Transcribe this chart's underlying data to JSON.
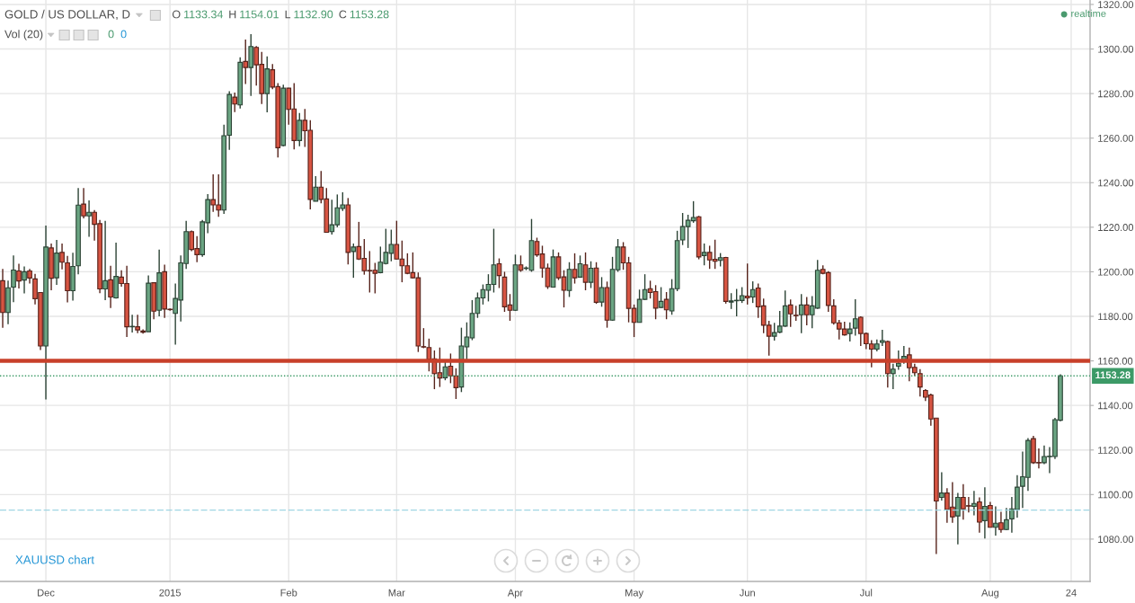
{
  "chart_data": {
    "type": "candlestick",
    "title": "GOLD / US DOLLAR, D",
    "annotations": [
      "O",
      "1133.34",
      "H",
      "1154.01",
      "L",
      "1132.90",
      "C",
      "1153.28",
      "Vol (20)",
      "0",
      "0",
      "realtime",
      "XAUUSD chart"
    ],
    "categories": [
      null,
      null,
      null,
      null,
      null,
      null,
      null,
      null,
      "Dec",
      null,
      null,
      null,
      null,
      null,
      null,
      null,
      null,
      null,
      null,
      null,
      null,
      null,
      null,
      null,
      null,
      null,
      null,
      null,
      null,
      null,
      null,
      "2015",
      null,
      null,
      null,
      null,
      null,
      null,
      null,
      null,
      null,
      null,
      null,
      null,
      null,
      null,
      null,
      null,
      null,
      null,
      null,
      null,
      null,
      "Feb",
      null,
      null,
      null,
      null,
      null,
      null,
      null,
      null,
      null,
      null,
      null,
      null,
      null,
      null,
      null,
      null,
      null,
      null,
      null,
      "Mar",
      null,
      null,
      null,
      null,
      null,
      null,
      null,
      null,
      null,
      null,
      null,
      null,
      null,
      null,
      null,
      null,
      null,
      null,
      null,
      null,
      null,
      "Apr",
      null,
      null,
      null,
      null,
      null,
      null,
      null,
      null,
      null,
      null,
      null,
      null,
      null,
      null,
      null,
      null,
      null,
      null,
      null,
      null,
      null,
      "May",
      null,
      null,
      null,
      null,
      null,
      null,
      null,
      null,
      null,
      null,
      null,
      null,
      null,
      null,
      null,
      null,
      null,
      null,
      null,
      null,
      "Jun",
      null,
      null,
      null,
      null,
      null,
      null,
      null,
      null,
      null,
      null,
      null,
      null,
      null,
      null,
      null,
      null,
      null,
      null,
      null,
      null,
      null,
      "Jul",
      null,
      null,
      null,
      null,
      null,
      null,
      null,
      null,
      null,
      null,
      null,
      null,
      null,
      null,
      null,
      null,
      null,
      null,
      null,
      null,
      null,
      null,
      "Aug",
      null,
      null,
      null,
      null,
      null,
      null,
      null,
      null,
      null,
      null,
      null,
      null,
      null,
      null,
      "24",
      null,
      null,
      null
    ],
    "ohlc": [
      [
        1196,
        1201.3,
        1174.9,
        1181.7
      ],
      [
        1181.7,
        1196,
        1176.5,
        1192.8
      ],
      [
        1193.1,
        1207.3,
        1186.4,
        1200.8
      ],
      [
        1200.4,
        1203.6,
        1192.5,
        1195.9
      ],
      [
        1196.3,
        1202.4,
        1190.3,
        1200
      ],
      [
        1200.4,
        1201.3,
        1194.7,
        1197.2
      ],
      [
        1196.8,
        1199.1,
        1185.3,
        1187.9
      ],
      [
        1190.7,
        1190.7,
        1164.9,
        1166.7
      ],
      [
        1166.7,
        1220.7,
        1142.7,
        1211.1
      ],
      [
        1210.7,
        1212.7,
        1191.7,
        1197.1
      ],
      [
        1197.3,
        1214.3,
        1194.1,
        1208.4
      ],
      [
        1208.7,
        1212.7,
        1201.1,
        1204.3
      ],
      [
        1204,
        1207.1,
        1186.3,
        1191.5
      ],
      [
        1191.5,
        1208.5,
        1187.1,
        1202.4
      ],
      [
        1202.7,
        1237.6,
        1198.9,
        1229.9
      ],
      [
        1230.4,
        1237.6,
        1224,
        1225.1
      ],
      [
        1225.1,
        1232,
        1215.7,
        1226.7
      ],
      [
        1226.7,
        1227.7,
        1214,
        1221.3
      ],
      [
        1221.6,
        1223.3,
        1190.4,
        1192.3
      ],
      [
        1192.3,
        1222.9,
        1187.3,
        1196
      ],
      [
        1196.4,
        1202.7,
        1183.7,
        1188.7
      ],
      [
        1188.3,
        1213.1,
        1188,
        1197.9
      ],
      [
        1197.6,
        1200.7,
        1193.3,
        1194.7
      ],
      [
        1194.7,
        1202.7,
        1170.7,
        1175.3
      ],
      [
        1175.3,
        1180.7,
        1172.7,
        1175.5
      ],
      [
        1175.3,
        1180.7,
        1172.4,
        1173.9
      ],
      [
        1173.4,
        1174.2,
        1172.2,
        1172.9
      ],
      [
        1173.1,
        1198.4,
        1173.1,
        1194.9
      ],
      [
        1195.1,
        1195.1,
        1178.7,
        1182.3
      ],
      [
        1182.7,
        1210,
        1180,
        1199.5
      ],
      [
        1200,
        1203.2,
        1179.3,
        1183.3
      ],
      [
        1183.2,
        1183.5,
        1182.5,
        1183
      ],
      [
        1181.3,
        1194.7,
        1167.3,
        1188
      ],
      [
        1187.3,
        1207.3,
        1177.7,
        1204
      ],
      [
        1203.7,
        1222.9,
        1201.3,
        1218
      ],
      [
        1218,
        1218.5,
        1209.3,
        1210
      ],
      [
        1210.4,
        1216,
        1204.3,
        1207.7
      ],
      [
        1207.7,
        1223.3,
        1206.7,
        1222.4
      ],
      [
        1222,
        1234.9,
        1217.3,
        1232.4
      ],
      [
        1232.4,
        1243.7,
        1226.9,
        1230
      ],
      [
        1230,
        1243.7,
        1224.7,
        1227.7
      ],
      [
        1227.7,
        1266,
        1226,
        1261.1
      ],
      [
        1261.3,
        1281.1,
        1254.7,
        1279.6
      ],
      [
        1278.4,
        1280.4,
        1271.7,
        1275.3
      ],
      [
        1274.9,
        1296.3,
        1273.3,
        1294
      ],
      [
        1294.4,
        1304.3,
        1284.3,
        1291.7
      ],
      [
        1291.7,
        1306.7,
        1278.9,
        1301.1
      ],
      [
        1300.7,
        1301.3,
        1283.6,
        1292.9
      ],
      [
        1293.1,
        1298.7,
        1275.3,
        1280
      ],
      [
        1280,
        1296.7,
        1271.6,
        1291.1
      ],
      [
        1290.7,
        1293.3,
        1282,
        1282.9
      ],
      [
        1283.1,
        1284.7,
        1251.3,
        1255.7
      ],
      [
        1256.7,
        1284,
        1256.3,
        1282.4
      ],
      [
        1282.4,
        1282.6,
        1266,
        1272.9
      ],
      [
        1273.1,
        1284.7,
        1254.9,
        1258.9
      ],
      [
        1258.9,
        1271.3,
        1256.3,
        1268
      ],
      [
        1268,
        1273.1,
        1256,
        1263.3
      ],
      [
        1263.5,
        1268,
        1228,
        1232.5
      ],
      [
        1231.7,
        1242.9,
        1231.7,
        1238
      ],
      [
        1238,
        1245.3,
        1230.7,
        1232.5
      ],
      [
        1232.7,
        1237.6,
        1217.6,
        1217.7
      ],
      [
        1218,
        1232.3,
        1216.7,
        1221.1
      ],
      [
        1221.1,
        1234.7,
        1220,
        1228.7
      ],
      [
        1228.4,
        1235.7,
        1227.3,
        1230
      ],
      [
        1230,
        1233.1,
        1203.3,
        1208.7
      ],
      [
        1209.1,
        1212.7,
        1197.3,
        1211.1
      ],
      [
        1211.3,
        1222.4,
        1205.3,
        1205.7
      ],
      [
        1206,
        1214.7,
        1198.7,
        1200.5
      ],
      [
        1200.6,
        1209.3,
        1190.7,
        1200.4
      ],
      [
        1200.7,
        1204,
        1190.3,
        1199.3
      ],
      [
        1199.6,
        1211.3,
        1199.3,
        1204.3
      ],
      [
        1203.7,
        1219.3,
        1203.3,
        1208.7
      ],
      [
        1208.3,
        1218.9,
        1204.7,
        1212.3
      ],
      [
        1212.3,
        1222.9,
        1205.6,
        1205.7
      ],
      [
        1205.7,
        1214,
        1195.3,
        1202.7
      ],
      [
        1202.7,
        1208.3,
        1198.9,
        1199.3
      ],
      [
        1199.6,
        1208.7,
        1197,
        1197.3
      ],
      [
        1197.3,
        1199.7,
        1164,
        1166.7
      ],
      [
        1166.4,
        1174.7,
        1165.7,
        1166.2
      ],
      [
        1166,
        1170,
        1155.3,
        1160.7
      ],
      [
        1160.9,
        1164.7,
        1147.3,
        1154.3
      ],
      [
        1154.7,
        1166,
        1148.3,
        1152.3
      ],
      [
        1152.4,
        1160,
        1151.3,
        1157.3
      ],
      [
        1157.6,
        1163.3,
        1150,
        1153.3
      ],
      [
        1153.3,
        1156.7,
        1142.9,
        1148
      ],
      [
        1148.3,
        1174.9,
        1146,
        1166.7
      ],
      [
        1166.3,
        1177.3,
        1160.7,
        1170.7
      ],
      [
        1170.3,
        1187.3,
        1169.3,
        1181.3
      ],
      [
        1181.3,
        1190.7,
        1179.3,
        1188.3
      ],
      [
        1188.3,
        1194.3,
        1185.3,
        1192
      ],
      [
        1191.7,
        1198.9,
        1186.7,
        1194.3
      ],
      [
        1194.3,
        1219.3,
        1190.7,
        1203.1
      ],
      [
        1203.6,
        1206,
        1192.7,
        1198.3
      ],
      [
        1197.6,
        1200,
        1182,
        1184.3
      ],
      [
        1185.1,
        1190,
        1178,
        1182.7
      ],
      [
        1182.7,
        1207.7,
        1182.4,
        1203.1
      ],
      [
        1203.1,
        1207.3,
        1200,
        1200.7
      ],
      [
        1201.5,
        1202.4,
        1200.7,
        1201.7
      ],
      [
        1200.7,
        1223.7,
        1200,
        1214
      ],
      [
        1213.6,
        1215.3,
        1206.7,
        1207.6
      ],
      [
        1208,
        1211.7,
        1197.3,
        1201.7
      ],
      [
        1201.7,
        1203.7,
        1192.3,
        1193.3
      ],
      [
        1193.1,
        1210,
        1193,
        1206.7
      ],
      [
        1206.7,
        1208.7,
        1196.3,
        1197.3
      ],
      [
        1197.7,
        1200.7,
        1184,
        1191.7
      ],
      [
        1191.6,
        1204.3,
        1188.7,
        1201.1
      ],
      [
        1201.1,
        1208.3,
        1194.7,
        1197.3
      ],
      [
        1197.6,
        1207.3,
        1197.3,
        1203.6
      ],
      [
        1203.1,
        1208.7,
        1191.7,
        1195.3
      ],
      [
        1195.3,
        1204.7,
        1192.7,
        1201.6
      ],
      [
        1201.7,
        1204.3,
        1185.6,
        1186.3
      ],
      [
        1186.4,
        1197.6,
        1184.3,
        1192.9
      ],
      [
        1192.9,
        1195.6,
        1174.9,
        1178.3
      ],
      [
        1178.3,
        1206.7,
        1178,
        1201.1
      ],
      [
        1200.9,
        1214.7,
        1200,
        1211.1
      ],
      [
        1211.1,
        1213.3,
        1200.9,
        1204
      ],
      [
        1204,
        1206.7,
        1177.3,
        1183.6
      ],
      [
        1183.6,
        1185.3,
        1170.7,
        1177.3
      ],
      [
        1177.3,
        1192,
        1177.3,
        1187.6
      ],
      [
        1187.6,
        1198.9,
        1187.3,
        1192
      ],
      [
        1192.4,
        1196,
        1188,
        1190.7
      ],
      [
        1191.1,
        1194,
        1178.7,
        1183.7
      ],
      [
        1184,
        1193.1,
        1183.7,
        1186.7
      ],
      [
        1187.6,
        1190.9,
        1178.7,
        1182.9
      ],
      [
        1182.4,
        1196.7,
        1180.7,
        1192.4
      ],
      [
        1192.4,
        1218.4,
        1191.3,
        1214
      ],
      [
        1214.3,
        1226.4,
        1212,
        1220.3
      ],
      [
        1220.3,
        1225.6,
        1210.7,
        1223.1
      ],
      [
        1222.9,
        1231.7,
        1222,
        1224.4
      ],
      [
        1224.7,
        1225.1,
        1205.6,
        1206.7
      ],
      [
        1207.3,
        1212.7,
        1202.9,
        1208.7
      ],
      [
        1208.7,
        1211.7,
        1201.3,
        1205.3
      ],
      [
        1205.6,
        1214.4,
        1201.3,
        1204.7
      ],
      [
        1205.1,
        1208.4,
        1202.4,
        1206.3
      ],
      [
        1206.4,
        1206.7,
        1185.7,
        1186.7
      ],
      [
        1186.4,
        1190.4,
        1183.3,
        1186.9
      ],
      [
        1187,
        1192.3,
        1180,
        1187.2
      ],
      [
        1187.1,
        1193.1,
        1186,
        1189.3
      ],
      [
        1189.1,
        1203.7,
        1185.3,
        1188.3
      ],
      [
        1188.7,
        1195.7,
        1186,
        1192
      ],
      [
        1192.7,
        1194.7,
        1179.3,
        1184.3
      ],
      [
        1184.7,
        1188,
        1172.4,
        1176
      ],
      [
        1176,
        1178,
        1162.4,
        1171.1
      ],
      [
        1171.1,
        1177.1,
        1169.1,
        1172.7
      ],
      [
        1172.9,
        1182.4,
        1172.4,
        1175.6
      ],
      [
        1175.6,
        1191.6,
        1175.3,
        1184.7
      ],
      [
        1185.1,
        1187.6,
        1175.3,
        1181.1
      ],
      [
        1180.5,
        1184.7,
        1178,
        1180.3
      ],
      [
        1180.7,
        1190,
        1172.4,
        1185.1
      ],
      [
        1185.1,
        1188.7,
        1176,
        1180.7
      ],
      [
        1180.7,
        1189.1,
        1174.7,
        1184.7
      ],
      [
        1183.7,
        1205.3,
        1183.3,
        1200.7
      ],
      [
        1201.1,
        1202.9,
        1198.9,
        1199.3
      ],
      [
        1199.6,
        1200.3,
        1182,
        1184.9
      ],
      [
        1184.7,
        1187.7,
        1176.3,
        1177.1
      ],
      [
        1177.1,
        1178.4,
        1169.6,
        1174.3
      ],
      [
        1174.3,
        1177.6,
        1171.3,
        1171.7
      ],
      [
        1172.3,
        1177.3,
        1168.7,
        1174.3
      ],
      [
        1174.7,
        1187.7,
        1171.3,
        1178.9
      ],
      [
        1179.6,
        1180,
        1166.7,
        1172.3
      ],
      [
        1172.3,
        1172.7,
        1165.3,
        1167.7
      ],
      [
        1167.6,
        1169.3,
        1157.1,
        1165.3
      ],
      [
        1165.3,
        1169.6,
        1164.3,
        1167.6
      ],
      [
        1168.3,
        1174,
        1166.7,
        1169.1
      ],
      [
        1168.7,
        1169.1,
        1148,
        1154.3
      ],
      [
        1154.3,
        1158.7,
        1147.3,
        1156.3
      ],
      [
        1157.6,
        1164.7,
        1156,
        1158.9
      ],
      [
        1160.3,
        1166.7,
        1158.7,
        1162
      ],
      [
        1162.7,
        1166,
        1150.9,
        1156.9
      ],
      [
        1157.1,
        1158.7,
        1153.3,
        1154.7
      ],
      [
        1154.3,
        1156.3,
        1144,
        1148.3
      ],
      [
        1146.7,
        1147.3,
        1142,
        1143.7
      ],
      [
        1144.7,
        1145.3,
        1130.9,
        1133.9
      ],
      [
        1134.3,
        1134.3,
        1073.3,
        1097.1
      ],
      [
        1098.7,
        1110,
        1097.3,
        1100.7
      ],
      [
        1100.7,
        1102.9,
        1087.3,
        1093.3
      ],
      [
        1094.4,
        1105.6,
        1087.3,
        1090
      ],
      [
        1090.4,
        1100.7,
        1077.6,
        1098.7
      ],
      [
        1098.7,
        1104.7,
        1088.7,
        1093.6
      ],
      [
        1095,
        1098.9,
        1092,
        1094.8
      ],
      [
        1094.7,
        1101.6,
        1090.7,
        1096
      ],
      [
        1096.7,
        1098.7,
        1082.9,
        1087.6
      ],
      [
        1088.3,
        1103.3,
        1080.3,
        1094.7
      ],
      [
        1095.1,
        1096.7,
        1085.3,
        1085.3
      ],
      [
        1085.3,
        1094.7,
        1081.6,
        1087.1
      ],
      [
        1087.3,
        1092.3,
        1082.9,
        1084.3
      ],
      [
        1084.3,
        1094,
        1084,
        1088.7
      ],
      [
        1089.1,
        1098.9,
        1082.9,
        1093.6
      ],
      [
        1093.3,
        1108.7,
        1089.6,
        1103.3
      ],
      [
        1103.7,
        1119.3,
        1094,
        1108
      ],
      [
        1107.7,
        1125.3,
        1101.6,
        1124.3
      ],
      [
        1125.1,
        1126.4,
        1113.7,
        1114.3
      ],
      [
        1114.4,
        1120.7,
        1111.7,
        1114.2
      ],
      [
        1114.3,
        1122,
        1113.6,
        1117.1
      ],
      [
        1117,
        1121.3,
        1109.6,
        1117.2
      ],
      [
        1117.1,
        1134.4,
        1116,
        1133.6
      ],
      [
        1133.34,
        1154.01,
        1132.9,
        1153.28
      ],
      null,
      null,
      null,
      null,
      null
    ],
    "colors": [
      "#d75442",
      "#6ba583",
      "#6ba583",
      "#d75442",
      "#6ba583",
      "#d75442",
      "#d75442",
      "#d75442",
      "#6ba583",
      "#d75442",
      "#6ba583",
      "#d75442",
      "#d75442",
      "#6ba583",
      "#6ba583",
      "#d75442",
      "#6ba583",
      "#d75442",
      "#d75442",
      "#6ba583",
      "#d75442",
      "#6ba583",
      "#d75442",
      "#d75442",
      "#6ba583",
      "#d75442",
      "#d75442",
      "#6ba583",
      "#d75442",
      "#6ba583",
      "#d75442",
      "#d75442",
      "#6ba583",
      "#6ba583",
      "#6ba583",
      "#d75442",
      "#d75442",
      "#6ba583",
      "#6ba583",
      "#d75442",
      "#d75442",
      "#6ba583",
      "#6ba583",
      "#d75442",
      "#6ba583",
      "#d75442",
      "#6ba583",
      "#d75442",
      "#d75442",
      "#6ba583",
      "#d75442",
      "#d75442",
      "#6ba583",
      "#d75442",
      "#d75442",
      "#6ba583",
      "#d75442",
      "#d75442",
      "#6ba583",
      "#d75442",
      "#d75442",
      "#6ba583",
      "#6ba583",
      "#6ba583",
      "#d75442",
      "#6ba583",
      "#d75442",
      "#d75442",
      "#d75442",
      "#d75442",
      "#6ba583",
      "#6ba583",
      "#6ba583",
      "#d75442",
      "#d75442",
      "#d75442",
      "#d75442",
      "#d75442",
      "#d75442",
      "#d75442",
      "#d75442",
      "#d75442",
      "#6ba583",
      "#d75442",
      "#d75442",
      "#6ba583",
      "#6ba583",
      "#6ba583",
      "#6ba583",
      "#6ba583",
      "#6ba583",
      "#6ba583",
      "#d75442",
      "#d75442",
      "#d75442",
      "#6ba583",
      "#d75442",
      "#6ba583",
      "#6ba583",
      "#d75442",
      "#d75442",
      "#d75442",
      "#6ba583",
      "#d75442",
      "#d75442",
      "#6ba583",
      "#d75442",
      "#6ba583",
      "#d75442",
      "#6ba583",
      "#d75442",
      "#6ba583",
      "#d75442",
      "#6ba583",
      "#6ba583",
      "#d75442",
      "#d75442",
      "#d75442",
      "#6ba583",
      "#6ba583",
      "#d75442",
      "#d75442",
      "#6ba583",
      "#d75442",
      "#6ba583",
      "#6ba583",
      "#6ba583",
      "#6ba583",
      "#6ba583",
      "#d75442",
      "#6ba583",
      "#d75442",
      "#d75442",
      "#6ba583",
      "#d75442",
      "#6ba583",
      "#6ba583",
      "#6ba583",
      "#d75442",
      "#6ba583",
      "#d75442",
      "#d75442",
      "#d75442",
      "#6ba583",
      "#6ba583",
      "#6ba583",
      "#d75442",
      "#d75442",
      "#6ba583",
      "#d75442",
      "#6ba583",
      "#6ba583",
      "#d75442",
      "#d75442",
      "#d75442",
      "#d75442",
      "#d75442",
      "#6ba583",
      "#6ba583",
      "#d75442",
      "#d75442",
      "#d75442",
      "#6ba583",
      "#6ba583",
      "#d75442",
      "#6ba583",
      "#6ba583",
      "#6ba583",
      "#d75442",
      "#d75442",
      "#d75442",
      "#d75442",
      "#d75442",
      "#d75442",
      "#6ba583",
      "#d75442",
      "#d75442",
      "#6ba583",
      "#d75442",
      "#d75442",
      "#6ba583",
      "#d75442",
      "#6ba583",
      "#d75442",
      "#6ba583",
      "#d75442",
      "#6ba583",
      "#6ba583",
      "#6ba583",
      "#6ba583",
      "#6ba583",
      "#d75442",
      "#d75442",
      "#6ba583",
      "#6ba583",
      "#6ba583",
      "#6ba583",
      null,
      null,
      null,
      null,
      null
    ],
    "ylim": [
      1061,
      1322
    ],
    "yticks": [
      {
        "value": 1080,
        "label": "1080.00"
      },
      {
        "value": 1100,
        "label": "1100.00"
      },
      {
        "value": 1120,
        "label": "1120.00"
      },
      {
        "value": 1140,
        "label": "1140.00"
      },
      {
        "value": 1160,
        "label": "1160.00"
      },
      {
        "value": 1180,
        "label": "1180.00"
      },
      {
        "value": 1200,
        "label": "1200.00"
      },
      {
        "value": 1220,
        "label": "1220.00"
      },
      {
        "value": 1240,
        "label": "1240.00"
      },
      {
        "value": 1260,
        "label": "1260.00"
      },
      {
        "value": 1280,
        "label": "1280.00"
      },
      {
        "value": 1300,
        "label": "1300.00"
      },
      {
        "value": 1320,
        "label": "1320.00"
      }
    ],
    "grid": true,
    "ref_lines": [
      {
        "axis": "y",
        "value": 1160,
        "color": "#c8402a",
        "line_style": "solid"
      },
      {
        "axis": "y",
        "value": 1153.28,
        "label": "1153.28",
        "color": "#3c9a67",
        "line_style": "dotted"
      },
      {
        "axis": "y",
        "value": 1093,
        "color": "#9fd6e3",
        "line_style": "dashed"
      }
    ]
  }
}
